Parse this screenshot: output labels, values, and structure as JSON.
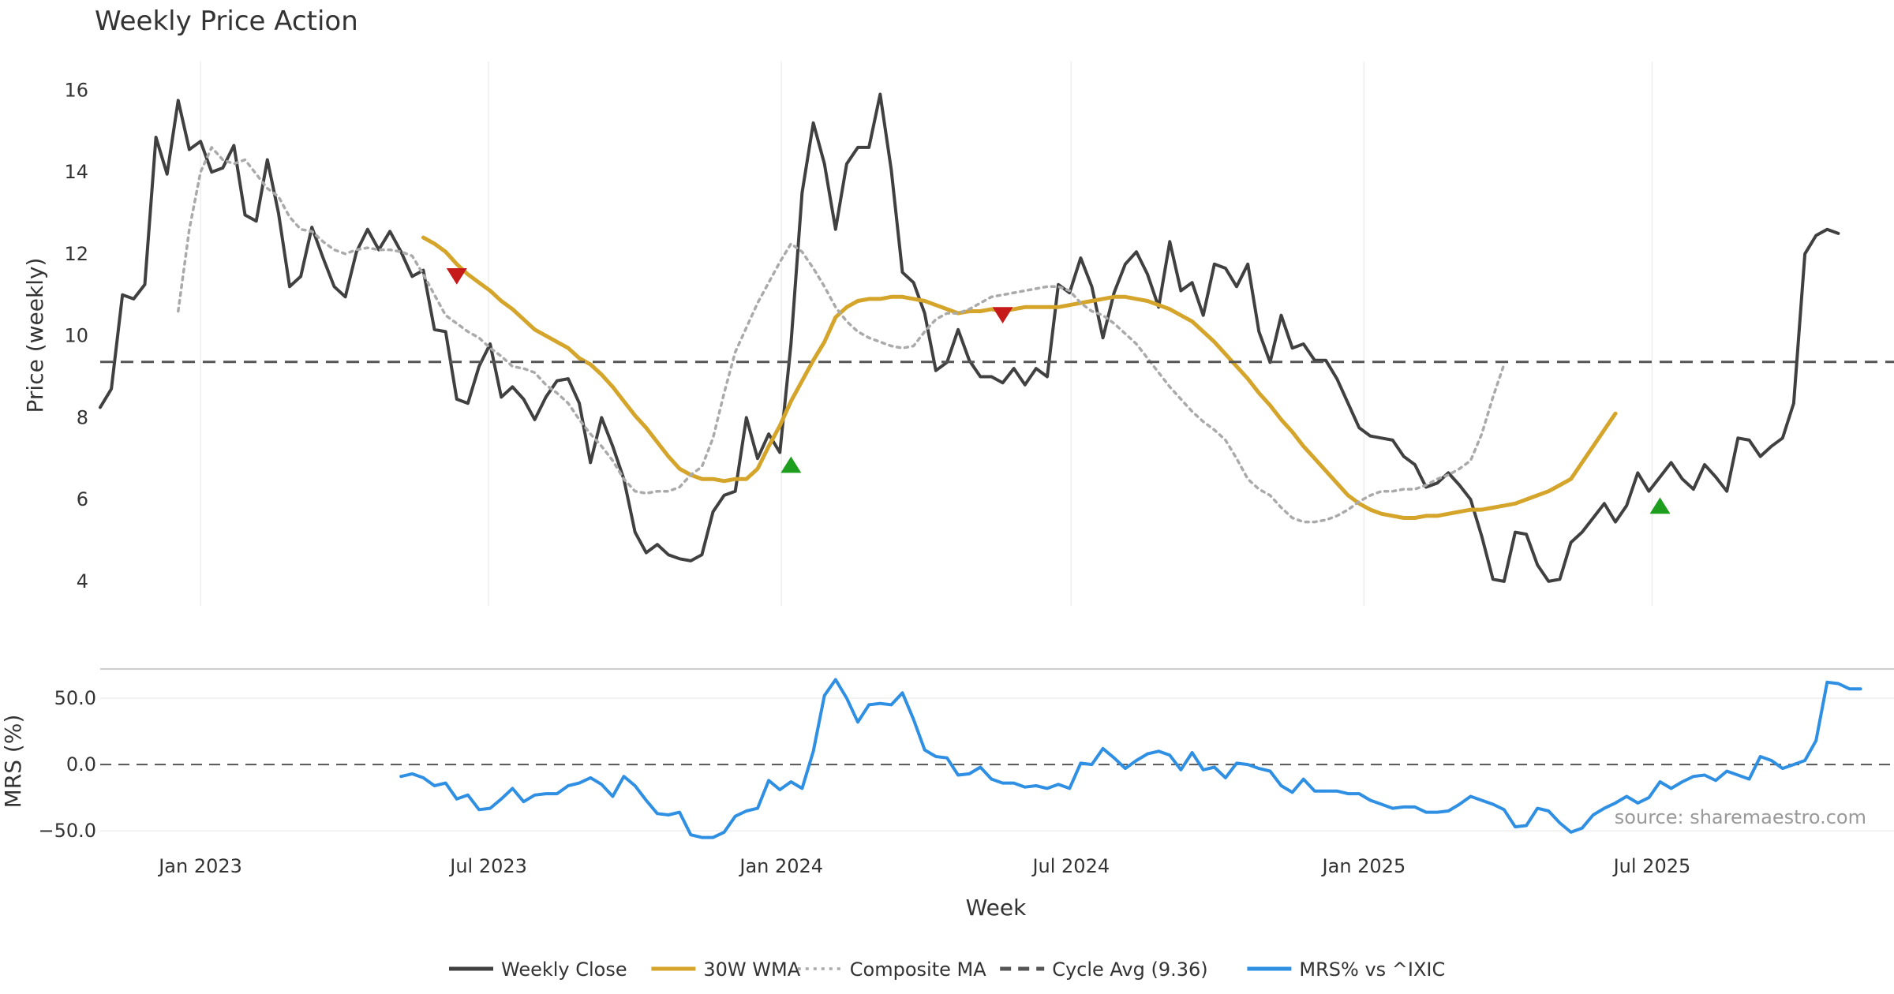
{
  "chart_data": [
    {
      "id": "price",
      "type": "line",
      "title": "Weekly Price Action",
      "ylabel": "Price (weekly)",
      "xlabel": "Week",
      "ylim": [
        3.4,
        16.7
      ],
      "yticks": [
        4,
        6,
        8,
        10,
        12,
        14,
        16
      ],
      "x_start": "2022-10-30",
      "x_end": "2025-11-30",
      "xticks": [
        {
          "date": "2023-01-01",
          "label": "Jan 2023"
        },
        {
          "date": "2023-07-01",
          "label": "Jul 2023"
        },
        {
          "date": "2024-01-01",
          "label": "Jan 2024"
        },
        {
          "date": "2024-07-01",
          "label": "Jul 2024"
        },
        {
          "date": "2025-01-01",
          "label": "Jan 2025"
        },
        {
          "date": "2025-07-01",
          "label": "Jul 2025"
        }
      ],
      "grid": true,
      "series": [
        {
          "name": "Weekly Close",
          "color": "#404040",
          "style": "solid",
          "start": "2022-10-30",
          "values": [
            8.25,
            8.7,
            11.0,
            10.9,
            11.25,
            14.85,
            13.95,
            15.75,
            14.55,
            14.75,
            14.0,
            14.1,
            14.65,
            12.95,
            12.8,
            14.3,
            13.0,
            11.2,
            11.45,
            12.65,
            11.9,
            11.2,
            10.95,
            12.05,
            12.6,
            12.1,
            12.55,
            12.05,
            11.45,
            11.6,
            10.15,
            10.1,
            8.45,
            8.35,
            9.25,
            9.8,
            8.5,
            8.75,
            8.45,
            7.95,
            8.5,
            8.9,
            8.95,
            8.35,
            6.9,
            8.0,
            7.3,
            6.5,
            5.2,
            4.7,
            4.9,
            4.65,
            4.55,
            4.5,
            4.65,
            5.7,
            6.1,
            6.2,
            8.0,
            7.0,
            7.6,
            7.15,
            9.8,
            13.5,
            15.2,
            14.2,
            12.6,
            14.2,
            14.6,
            14.6,
            15.9,
            14.05,
            11.55,
            11.3,
            10.55,
            9.15,
            9.35,
            10.15,
            9.4,
            9.0,
            9.0,
            8.85,
            9.2,
            8.8,
            9.2,
            9.0,
            11.25,
            11.05,
            11.9,
            11.2,
            9.95,
            11.05,
            11.75,
            12.05,
            11.5,
            10.7,
            12.3,
            11.1,
            11.3,
            10.5,
            11.75,
            11.65,
            11.2,
            11.75,
            10.1,
            9.35,
            10.5,
            9.7,
            9.8,
            9.4,
            9.4,
            8.95,
            8.35,
            7.75,
            7.55,
            7.5,
            7.45,
            7.05,
            6.85,
            6.3,
            6.4,
            6.65,
            6.35,
            6.0,
            5.1,
            4.05,
            4.0,
            5.2,
            5.15,
            4.4,
            4.0,
            4.05,
            4.95,
            5.2,
            5.55,
            5.9,
            5.45,
            5.85,
            6.65,
            6.2,
            6.55,
            6.9,
            6.5,
            6.25,
            6.85,
            6.55,
            6.2,
            7.5,
            7.45,
            7.05,
            7.3,
            7.5,
            8.35,
            12.0,
            12.45,
            12.6,
            12.5
          ]
        },
        {
          "name": "30W WMA",
          "color": "#D4A52A",
          "style": "solid",
          "start": "2023-05-21",
          "values": [
            12.4,
            12.25,
            12.05,
            11.75,
            11.5,
            11.3,
            11.1,
            10.85,
            10.65,
            10.4,
            10.15,
            10.0,
            9.85,
            9.7,
            9.45,
            9.3,
            9.05,
            8.75,
            8.4,
            8.05,
            7.75,
            7.4,
            7.05,
            6.75,
            6.6,
            6.5,
            6.5,
            6.45,
            6.5,
            6.5,
            6.75,
            7.3,
            7.8,
            8.4,
            8.9,
            9.4,
            9.85,
            10.45,
            10.7,
            10.85,
            10.9,
            10.9,
            10.95,
            10.95,
            10.9,
            10.85,
            10.75,
            10.65,
            10.55,
            10.6,
            10.6,
            10.65,
            10.6,
            10.65,
            10.7,
            10.7,
            10.7,
            10.7,
            10.75,
            10.8,
            10.85,
            10.9,
            10.95,
            10.95,
            10.9,
            10.85,
            10.75,
            10.65,
            10.5,
            10.35,
            10.1,
            9.85,
            9.55,
            9.25,
            8.95,
            8.6,
            8.3,
            7.95,
            7.65,
            7.3,
            7.0,
            6.7,
            6.4,
            6.1,
            5.9,
            5.75,
            5.65,
            5.6,
            5.55,
            5.55,
            5.6,
            5.6,
            5.65,
            5.7,
            5.75,
            5.75,
            5.8,
            5.85,
            5.9,
            6.0,
            6.1,
            6.2,
            6.35,
            6.5,
            6.9,
            7.3,
            7.7,
            8.1
          ]
        },
        {
          "name": "Composite MA",
          "color": "#AAAAAA",
          "style": "dotted",
          "start": "2022-12-18",
          "values": [
            10.6,
            12.6,
            14.0,
            14.6,
            14.3,
            14.2,
            14.3,
            13.95,
            13.6,
            13.4,
            12.9,
            12.6,
            12.55,
            12.3,
            12.1,
            12.0,
            12.1,
            12.15,
            12.1,
            12.1,
            12.05,
            11.95,
            11.5,
            11.0,
            10.5,
            10.3,
            10.1,
            9.95,
            9.7,
            9.5,
            9.25,
            9.2,
            9.1,
            8.8,
            8.6,
            8.35,
            7.95,
            7.6,
            7.3,
            6.95,
            6.5,
            6.2,
            6.15,
            6.2,
            6.2,
            6.3,
            6.6,
            6.8,
            7.5,
            8.6,
            9.6,
            10.2,
            10.8,
            11.3,
            11.8,
            12.25,
            12.05,
            11.65,
            11.2,
            10.7,
            10.35,
            10.1,
            9.95,
            9.85,
            9.75,
            9.7,
            9.75,
            10.1,
            10.4,
            10.55,
            10.55,
            10.65,
            10.8,
            10.95,
            11.0,
            11.05,
            11.1,
            11.15,
            11.2,
            11.2,
            11.1,
            10.8,
            10.6,
            10.5,
            10.3,
            10.05,
            9.8,
            9.45,
            9.1,
            8.75,
            8.45,
            8.15,
            7.9,
            7.7,
            7.45,
            7.0,
            6.5,
            6.25,
            6.1,
            5.8,
            5.55,
            5.45,
            5.45,
            5.5,
            5.6,
            5.75,
            5.95,
            6.1,
            6.2,
            6.2,
            6.25,
            6.25,
            6.35,
            6.5,
            6.6,
            6.75,
            6.95,
            7.6,
            8.5,
            9.3
          ]
        },
        {
          "name": "Cycle Avg (9.36)",
          "color": "#555555",
          "style": "dashed",
          "constant": 9.36
        }
      ],
      "markers": [
        {
          "type": "sell",
          "date": "2023-06-11",
          "y": 11.45,
          "color": "#C61A1A"
        },
        {
          "type": "buy",
          "date": "2024-01-07",
          "y": 6.85,
          "color": "#1E9E1E"
        },
        {
          "type": "sell",
          "date": "2024-05-19",
          "y": 10.5,
          "color": "#C61A1A"
        },
        {
          "type": "buy",
          "date": "2025-07-06",
          "y": 5.85,
          "color": "#1E9E1E"
        }
      ]
    },
    {
      "id": "mrs",
      "type": "line",
      "ylabel": "MRS (%)",
      "ylim": [
        -60,
        72
      ],
      "yticks": [
        {
          "value": 50,
          "label": "50.0"
        },
        {
          "value": 0,
          "label": "0.0"
        },
        {
          "value": -50,
          "label": "−50.0"
        }
      ],
      "zero_line": true,
      "series": [
        {
          "name": "MRS% vs ^IXIC",
          "color": "#2E8FE3",
          "style": "solid",
          "start": "2023-05-07",
          "values": [
            -9,
            -7,
            -10,
            -16,
            -14,
            -26,
            -23,
            -34,
            -33,
            -26,
            -18,
            -28,
            -23,
            -22,
            -22,
            -16,
            -14,
            -10,
            -15,
            -24,
            -9,
            -16,
            -27,
            -37,
            -38,
            -36,
            -53,
            -55,
            -55,
            -51,
            -39,
            -35,
            -33,
            -12,
            -19,
            -13,
            -18,
            10,
            52,
            64,
            50,
            32,
            45,
            46,
            45,
            54,
            34,
            11,
            6,
            5,
            -8,
            -7,
            -2,
            -11,
            -14,
            -14,
            -17,
            -16,
            -18,
            -15,
            -18,
            1,
            0,
            12,
            5,
            -3,
            3,
            8,
            10,
            7,
            -4,
            9,
            -4,
            -2,
            -10,
            1,
            0,
            -3,
            -5,
            -16,
            -21,
            -11,
            -20,
            -20,
            -20,
            -22,
            -22,
            -27,
            -30,
            -33,
            -32,
            -32,
            -36,
            -36,
            -35,
            -30,
            -24,
            -27,
            -30,
            -34,
            -47,
            -46,
            -33,
            -35,
            -44,
            -51,
            -48,
            -38,
            -33,
            -29,
            -24,
            -29,
            -25,
            -13,
            -18,
            -13,
            -9,
            -8,
            -12,
            -5,
            -8,
            -11,
            6,
            3,
            -3,
            0,
            3,
            18,
            62,
            61,
            57,
            57
          ]
        }
      ]
    }
  ],
  "source_text": "source: sharemaestro.com",
  "legend": [
    {
      "label": "Weekly Close",
      "color": "#404040",
      "style": "solid"
    },
    {
      "label": "30W WMA",
      "color": "#D4A52A",
      "style": "solid"
    },
    {
      "label": "Composite MA",
      "color": "#AAAAAA",
      "style": "dotted"
    },
    {
      "label": "Cycle Avg (9.36)",
      "color": "#555555",
      "style": "dashed"
    },
    {
      "label": "MRS% vs ^IXIC",
      "color": "#2E8FE3",
      "style": "solid"
    }
  ]
}
